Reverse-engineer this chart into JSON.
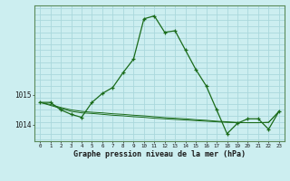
{
  "xlabel": "Graphe pression niveau de la mer (hPa)",
  "background_color": "#cceef0",
  "grid_color": "#aad8dc",
  "line_color": "#1a6b1a",
  "hours": [
    0,
    1,
    2,
    3,
    4,
    5,
    6,
    7,
    8,
    9,
    10,
    11,
    12,
    13,
    14,
    15,
    16,
    17,
    18,
    19,
    20,
    21,
    22,
    23
  ],
  "pressure_main": [
    1014.75,
    1014.75,
    1014.5,
    1014.35,
    1014.25,
    1014.75,
    1015.05,
    1015.25,
    1015.75,
    1016.2,
    1017.55,
    1017.65,
    1017.1,
    1017.15,
    1016.5,
    1015.85,
    1015.3,
    1014.5,
    1013.7,
    1014.05,
    1014.2,
    1014.2,
    1013.85,
    1014.45
  ],
  "pressure_line2": [
    1014.75,
    1014.65,
    1014.55,
    1014.45,
    1014.4,
    1014.38,
    1014.35,
    1014.32,
    1014.3,
    1014.27,
    1014.25,
    1014.22,
    1014.2,
    1014.18,
    1014.16,
    1014.14,
    1014.12,
    1014.1,
    1014.08,
    1014.07,
    1014.07,
    1014.07,
    1014.08,
    1014.45
  ],
  "pressure_line3": [
    1014.75,
    1014.68,
    1014.58,
    1014.5,
    1014.45,
    1014.42,
    1014.4,
    1014.37,
    1014.35,
    1014.32,
    1014.3,
    1014.27,
    1014.24,
    1014.22,
    1014.2,
    1014.17,
    1014.15,
    1014.12,
    1014.1,
    1014.08,
    1014.07,
    1014.07,
    1014.08,
    1014.45
  ],
  "ytick_positions": [
    1014,
    1015
  ],
  "ytick_top": 1017,
  "ylim": [
    1013.45,
    1018.0
  ],
  "xlim": [
    -0.5,
    23.5
  ]
}
